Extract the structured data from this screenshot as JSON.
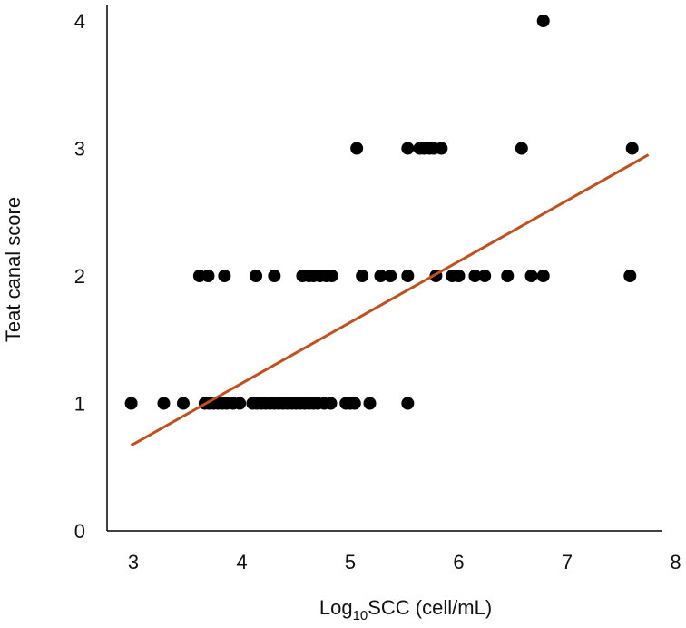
{
  "chart_data": {
    "type": "scatter",
    "title": "",
    "xlabel": {
      "prefix": "Log",
      "subscript": "10",
      "suffix": "SCC (cell/mL)"
    },
    "ylabel": "Teat canal score",
    "xlim": [
      3,
      8
    ],
    "ylim": [
      0,
      4
    ],
    "xticks": [
      "3",
      "4",
      "5",
      "6",
      "7",
      "8"
    ],
    "yticks": [
      "0",
      "1",
      "2",
      "3",
      "4"
    ],
    "grid": false,
    "legend": "none",
    "marker_color": "#000000",
    "trendline_color": "#C0501E",
    "series": [
      {
        "x": [
          2.98,
          3.28,
          3.46,
          3.66,
          3.7,
          3.74,
          3.78,
          3.82,
          3.86,
          3.92,
          3.98,
          4.1,
          4.14,
          4.18,
          4.22,
          4.26,
          4.3,
          4.34,
          4.38,
          4.42,
          4.46,
          4.5,
          4.54,
          4.58,
          4.62,
          4.66,
          4.7,
          4.76,
          4.82,
          4.96,
          5.0,
          5.04,
          5.18,
          5.53,
          3.61,
          3.69,
          3.84,
          4.13,
          4.3,
          4.56,
          4.62,
          4.66,
          4.72,
          4.78,
          4.83,
          5.11,
          5.28,
          5.37,
          5.53,
          5.79,
          5.94,
          6.0,
          6.15,
          6.24,
          6.45,
          6.67,
          6.78,
          7.58,
          5.06,
          5.53,
          5.64,
          5.68,
          5.73,
          5.77,
          5.84,
          6.58,
          7.6,
          6.78
        ],
        "y": [
          1,
          1,
          1,
          1,
          1,
          1,
          1,
          1,
          1,
          1,
          1,
          1,
          1,
          1,
          1,
          1,
          1,
          1,
          1,
          1,
          1,
          1,
          1,
          1,
          1,
          1,
          1,
          1,
          1,
          1,
          1,
          1,
          1,
          1,
          2,
          2,
          2,
          2,
          2,
          2,
          2,
          2,
          2,
          2,
          2,
          2,
          2,
          2,
          2,
          2,
          2,
          2,
          2,
          2,
          2,
          2,
          2,
          2,
          3,
          3,
          3,
          3,
          3,
          3,
          3,
          3,
          3,
          4
        ]
      }
    ],
    "trendline": {
      "x": [
        2.98,
        7.75
      ],
      "y": [
        0.67,
        2.95
      ]
    }
  }
}
